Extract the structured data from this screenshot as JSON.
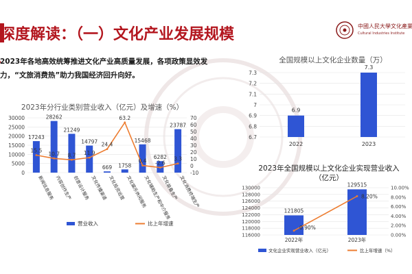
{
  "header": {
    "title": "深度解读：（一）文化产业发展规模",
    "logo_text": "中國人民大學文化產業研",
    "logo_sub": "Cultural Industries Institute"
  },
  "summary": {
    "line1": "2023年各地高效统筹推进文化产业高质量发展，各项政策显效发",
    "line2": "力，“文旅消费热”助力我国经济回升向好。"
  },
  "charts": {
    "left_legend": [
      "营业收入",
      "比上年增速"
    ],
    "bottom_legend": [
      "文化企业实现营业收入（亿元）",
      "比上年增速（%）"
    ]
  },
  "chart_data": [
    {
      "type": "bar",
      "title": "2023年分行业类别营业收入（亿元）及增速（%）",
      "categories": [
        "新闻信息服务",
        "内容创作生产",
        "创意设计服务",
        "文化传播渠道",
        "文化投资运营",
        "文化娱乐休闲服务",
        "文化辅助生产和中介服务",
        "文化装备生产",
        "文化消费终端生产"
      ],
      "series": [
        {
          "name": "营业收入",
          "type": "bar",
          "values": [
            17243,
            28262,
            21249,
            14797,
            669,
            1758,
            15468,
            6282,
            23787
          ],
          "labels": [
            "17243",
            "28262",
            "21249",
            "14797",
            "669",
            "1758",
            "15468",
            "6282",
            "23787"
          ]
        },
        {
          "name": "比上年增速",
          "type": "line",
          "values": [
            15.5,
            10.7,
            8.7,
            11.9,
            24.4,
            63.2,
            0.4,
            -2.6,
            3.3
          ],
          "labels": [
            "15.5",
            "10.7",
            "8.7",
            "11.9",
            "24.4",
            "63.2",
            "0.4",
            "-2.6",
            "3.3"
          ]
        }
      ],
      "ylim_left": [
        0,
        30000
      ],
      "ylim_right": [
        -10,
        70
      ],
      "yticks_left": [
        "0",
        "5000",
        "10000",
        "15000",
        "20000",
        "25000",
        "30000"
      ],
      "yticks_right": [
        "-10",
        "0",
        "10",
        "20",
        "30",
        "40",
        "50",
        "60",
        "70"
      ],
      "colors": {
        "bar": "#2f55d4",
        "line": "#ed7d31"
      }
    },
    {
      "type": "bar",
      "title": "全国规模以上文化企业数量（万）",
      "categories": [
        "2022",
        "2023"
      ],
      "values": [
        6.9,
        7.3
      ],
      "labels": [
        "6.9",
        "7.3"
      ],
      "ylim": [
        6.7,
        7.3
      ],
      "yticks": [
        "6.7",
        "6.8",
        "6.9",
        "7",
        "7.1",
        "7.2",
        "7.3"
      ],
      "colors": {
        "bar": "#2f55d4"
      }
    },
    {
      "type": "bar",
      "title": "2023年全国规模以上文化企业实现营业收入（亿元）",
      "categories": [
        "2022年",
        "2023年"
      ],
      "series": [
        {
          "name": "文化企业实现营业收入（亿元）",
          "type": "bar",
          "values": [
            121805,
            129515
          ],
          "labels": [
            "121805",
            "129515"
          ]
        },
        {
          "name": "比上年增速（%）",
          "type": "line",
          "values": [
            0.9,
            8.2
          ],
          "labels": [
            "0.90%",
            "8.20%"
          ]
        }
      ],
      "ylim_left": [
        116000,
        130000
      ],
      "ylim_right": [
        0,
        10
      ],
      "yticks_left": [
        "116000",
        "118000",
        "120000",
        "122000",
        "124000",
        "126000",
        "128000",
        "130000"
      ],
      "yticks_right": [
        "0.00%",
        "2.00%",
        "4.00%",
        "6.00%",
        "8.00%",
        "10.00%"
      ],
      "colors": {
        "bar": "#2f55d4",
        "line": "#ed7d31"
      }
    }
  ]
}
